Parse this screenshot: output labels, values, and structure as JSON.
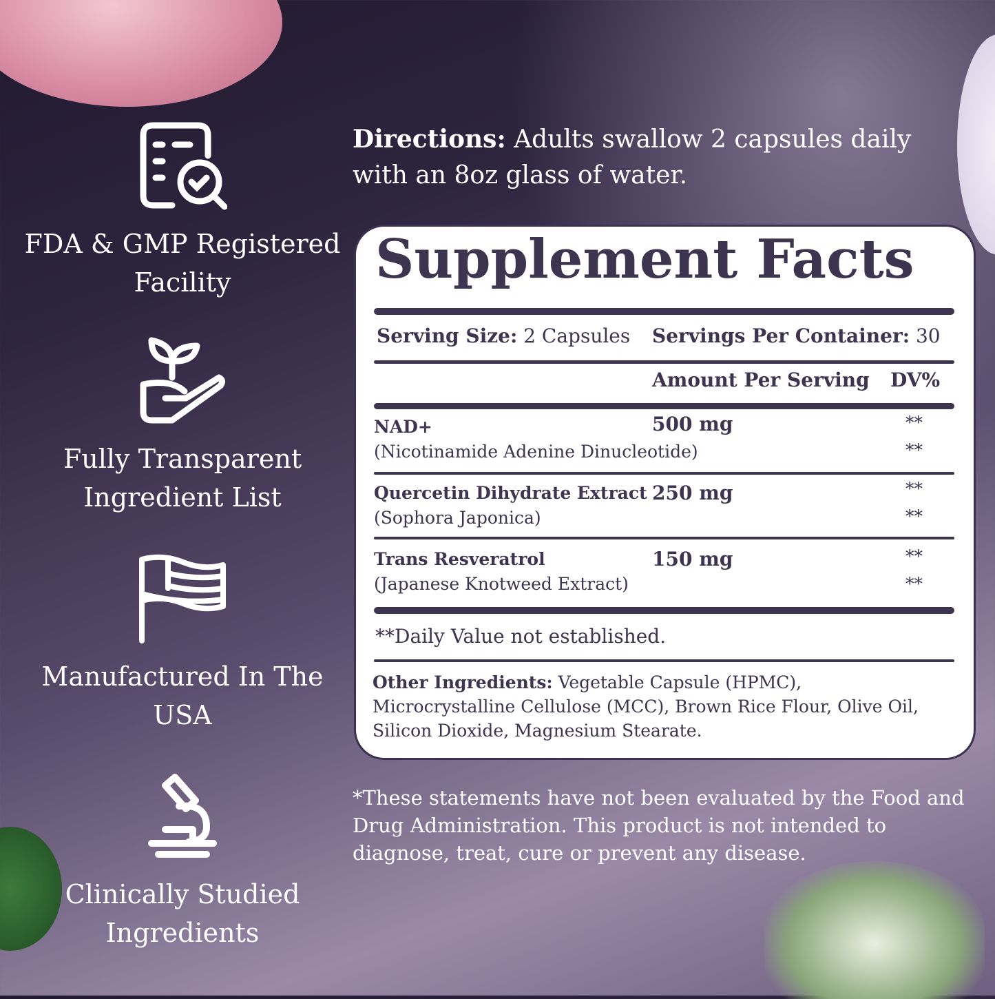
{
  "features": [
    {
      "icon": "checklist-search-icon",
      "line1": "FDA & GMP Registered",
      "line2": "Facility"
    },
    {
      "icon": "hand-sprout-icon",
      "line1": "Fully Transparent",
      "line2": "Ingredient List"
    },
    {
      "icon": "usa-flag-icon",
      "line1": "Manufactured In The",
      "line2": "USA"
    },
    {
      "icon": "microscope-icon",
      "line1": "Clinically Studied",
      "line2": "Ingredients"
    }
  ],
  "directions": {
    "label": "Directions:",
    "text": " Adults swallow 2 capsules daily with an 8oz glass of water."
  },
  "facts": {
    "title": "Supplement Facts",
    "serving_size_label": "Serving Size:",
    "serving_size": " 2 Capsules",
    "servings_label": "Servings Per Container:",
    "servings": " 30",
    "amount_header": "Amount Per Serving",
    "dv_header": "DV%",
    "ingredients": [
      {
        "name": "NAD+",
        "sub": "(Nicotinamide Adenine Dinucleotide)",
        "amount": "500 mg",
        "dv1": "**",
        "dv2": "**"
      },
      {
        "name": "Quercetin Dihydrate Extract",
        "sub": "(Sophora Japonica)",
        "amount": "250 mg",
        "dv1": "**",
        "dv2": "**"
      },
      {
        "name": "Trans Resveratrol",
        "sub": "(Japanese Knotweed Extract)",
        "amount": "150 mg",
        "dv1": "**",
        "dv2": "**"
      }
    ],
    "footnote": "**Daily Value not established.",
    "other_label": "Other Ingredients:",
    "other_text": " Vegetable Capsule (HPMC), Microcrystalline Cellulose (MCC), Brown Rice Flour, Olive Oil, Silicon Dioxide, Magnesium Stearate."
  },
  "disclaimer": "*These statements have not been evaluated by the Food and Drug Administration. This product is not intended to diagnose, treat, cure or prevent any disease.",
  "colors": {
    "text_dark": "#3d3450",
    "background_dark": "#221a30",
    "background_light": "#9a8aa8"
  }
}
